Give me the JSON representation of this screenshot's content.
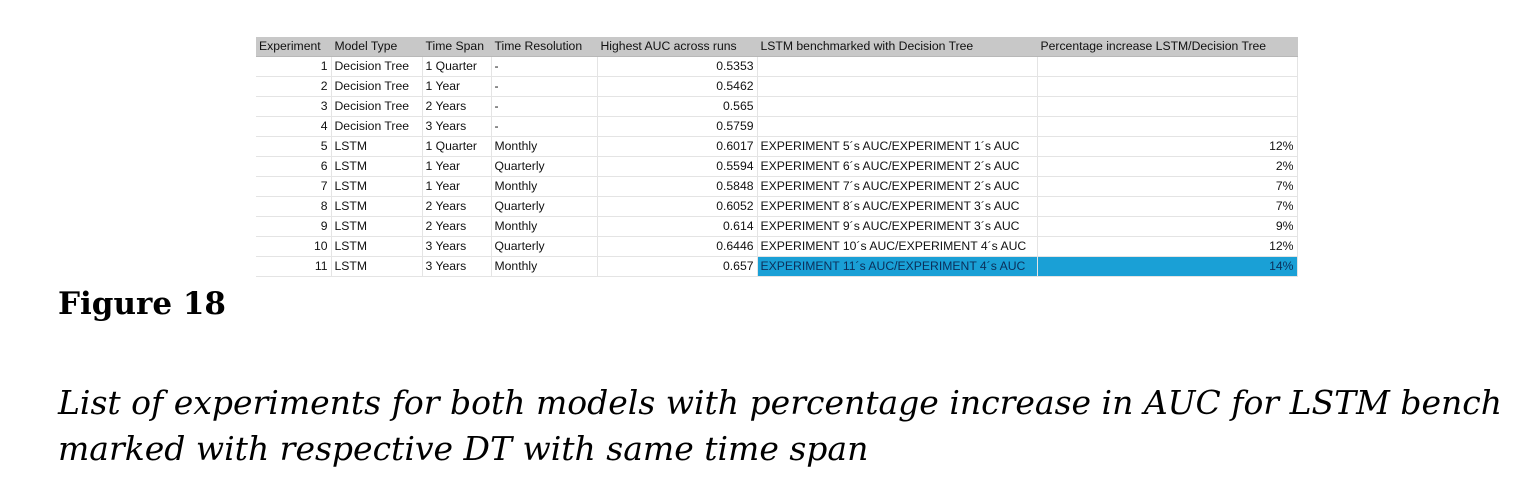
{
  "table": {
    "headers": [
      "Experiment",
      "Model Type",
      "Time Span",
      "Time Resolution",
      "Highest AUC across runs",
      "LSTM benchmarked with Decision Tree",
      "Percentage increase LSTM/Decision Tree"
    ],
    "rows": [
      [
        "1",
        "Decision Tree",
        "1 Quarter",
        "-",
        "0.5353",
        "",
        ""
      ],
      [
        "2",
        "Decision Tree",
        "1 Year",
        "-",
        "0.5462",
        "",
        ""
      ],
      [
        "3",
        "Decision Tree",
        "2 Years",
        "-",
        "0.565",
        "",
        ""
      ],
      [
        "4",
        "Decision Tree",
        "3 Years",
        "-",
        "0.5759",
        "",
        ""
      ],
      [
        "5",
        "LSTM",
        "1 Quarter",
        "Monthly",
        "0.6017",
        "EXPERIMENT 5´s AUC/EXPERIMENT 1´s AUC",
        "12%"
      ],
      [
        "6",
        "LSTM",
        "1 Year",
        "Quarterly",
        "0.5594",
        "EXPERIMENT 6´s AUC/EXPERIMENT 2´s AUC",
        "2%"
      ],
      [
        "7",
        "LSTM",
        "1 Year",
        "Monthly",
        "0.5848",
        "EXPERIMENT 7´s AUC/EXPERIMENT 2´s AUC",
        "7%"
      ],
      [
        "8",
        "LSTM",
        "2 Years",
        "Quarterly",
        "0.6052",
        "EXPERIMENT 8´s AUC/EXPERIMENT 3´s AUC",
        "7%"
      ],
      [
        "9",
        "LSTM",
        "2 Years",
        "Monthly",
        "0.614",
        "EXPERIMENT 9´s AUC/EXPERIMENT 3´s AUC",
        "9%"
      ],
      [
        "10",
        "LSTM",
        "3 Years",
        "Quarterly",
        "0.6446",
        "EXPERIMENT 10´s AUC/EXPERIMENT 4´s AUC",
        "12%"
      ],
      [
        "11",
        "LSTM",
        "3 Years",
        "Monthly",
        "0.657",
        "EXPERIMENT 11´s AUC/EXPERIMENT 4´s AUC",
        "14%"
      ]
    ],
    "highlight_color": "#1aa0d6",
    "header_color": "#c8c8c8"
  },
  "figure": {
    "label": "Figure 18",
    "caption_line1": "List of experiments for both models with percentage increase in AUC for LSTM bench",
    "caption_line2": "marked with respective DT with same time span"
  }
}
